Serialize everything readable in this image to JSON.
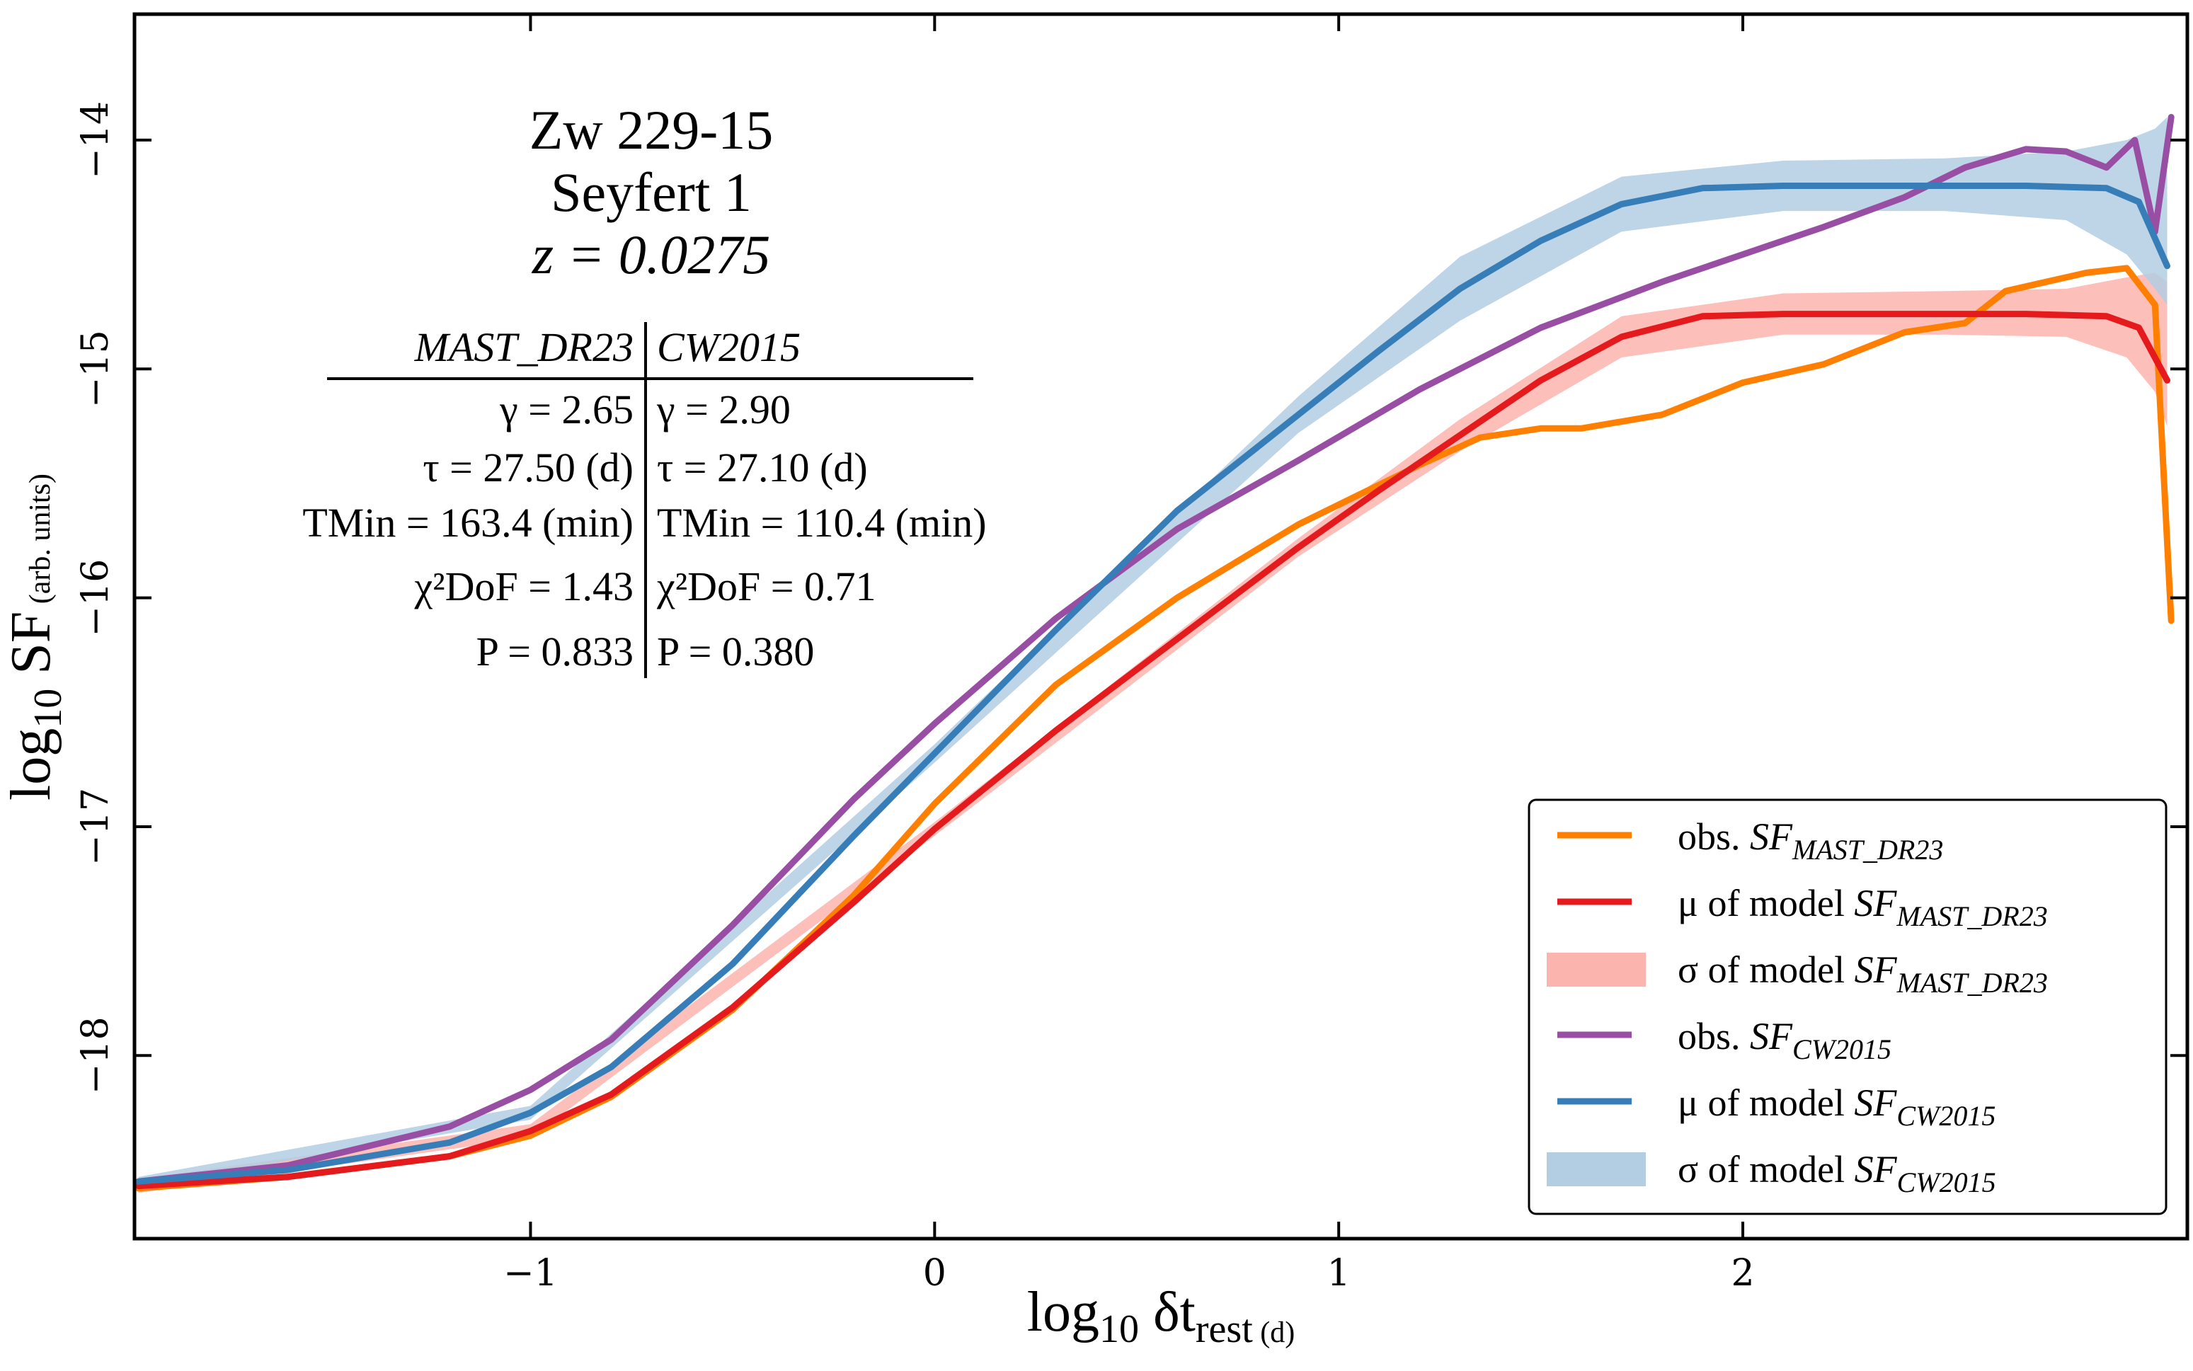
{
  "chart_data": {
    "type": "line",
    "title_lines": [
      "Zw 229-15",
      "Seyfert 1",
      "z = 0.0275"
    ],
    "xlabel": "log10 δtrest (d)",
    "ylabel": "log10 SF (arb. units)",
    "xlim": [
      -1.98,
      3.1
    ],
    "ylim": [
      -18.8,
      -13.45
    ],
    "xticks": [
      -1,
      0,
      1,
      2
    ],
    "xtick_labels": [
      "−1",
      "0",
      "1",
      "2"
    ],
    "yticks": [
      -14,
      -15,
      -16,
      -17,
      -18
    ],
    "ytick_labels": [
      "−14",
      "−15",
      "−16",
      "−17",
      "−18"
    ],
    "grid": false,
    "legend_position": "bottom-right",
    "stats_table": {
      "headers": [
        "MAST_DR23",
        "CW2015"
      ],
      "rows": [
        [
          "γ = 2.65",
          "γ = 2.90"
        ],
        [
          "τ = 27.50 (d)",
          "τ = 27.10 (d)"
        ],
        [
          "TMin = 163.4 (min)",
          "TMin = 110.4 (min)"
        ],
        [
          "χ²DoF = 1.43",
          "χ²DoF = 0.71"
        ],
        [
          "P = 0.833",
          "P = 0.380"
        ]
      ]
    },
    "series": [
      {
        "name": "obs. SFMAST_DR23",
        "kind": "line",
        "color": "#ff7f00",
        "x": [
          -1.97,
          -1.6,
          -1.2,
          -1.0,
          -0.8,
          -0.5,
          -0.2,
          0.0,
          0.3,
          0.6,
          0.9,
          1.2,
          1.35,
          1.5,
          1.6,
          1.8,
          2.0,
          2.2,
          2.4,
          2.55,
          2.65,
          2.75,
          2.85,
          2.95,
          3.02,
          3.06
        ],
        "y": [
          -18.58,
          -18.53,
          -18.44,
          -18.35,
          -18.18,
          -17.8,
          -17.3,
          -16.9,
          -16.38,
          -16.0,
          -15.68,
          -15.42,
          -15.3,
          -15.26,
          -15.26,
          -15.2,
          -15.06,
          -14.98,
          -14.84,
          -14.8,
          -14.66,
          -14.62,
          -14.58,
          -14.56,
          -14.72,
          -16.1
        ]
      },
      {
        "name": "μ of model SFMAST_DR23",
        "kind": "line",
        "color": "#e41a1c",
        "x": [
          -1.97,
          -1.6,
          -1.2,
          -1.0,
          -0.8,
          -0.5,
          -0.2,
          0.0,
          0.3,
          0.6,
          0.9,
          1.1,
          1.3,
          1.5,
          1.7,
          1.9,
          2.1,
          2.4,
          2.7,
          2.9,
          2.98,
          3.05
        ],
        "y": [
          -18.57,
          -18.53,
          -18.44,
          -18.33,
          -18.17,
          -17.79,
          -17.33,
          -17.01,
          -16.58,
          -16.18,
          -15.78,
          -15.53,
          -15.29,
          -15.05,
          -14.86,
          -14.77,
          -14.76,
          -14.76,
          -14.76,
          -14.77,
          -14.82,
          -15.05
        ]
      },
      {
        "name": "σ of model SFMAST_DR23",
        "kind": "band",
        "color": "#fbb4ae",
        "x": [
          -1.97,
          -1.0,
          0.0,
          0.9,
          1.3,
          1.7,
          2.1,
          2.5,
          2.8,
          2.95,
          3.02,
          3.05
        ],
        "y_low": [
          -18.6,
          -18.36,
          -17.04,
          -15.82,
          -15.36,
          -14.95,
          -14.85,
          -14.85,
          -14.86,
          -14.95,
          -15.1,
          -15.25
        ],
        "y_high": [
          -18.54,
          -18.3,
          -16.98,
          -15.74,
          -15.22,
          -14.77,
          -14.67,
          -14.66,
          -14.65,
          -14.6,
          -14.58,
          -14.62
        ]
      },
      {
        "name": "obs. SFCW2015",
        "kind": "line",
        "color": "#984ea3",
        "x": [
          -1.97,
          -1.6,
          -1.2,
          -1.0,
          -0.8,
          -0.5,
          -0.2,
          0.0,
          0.3,
          0.6,
          0.9,
          1.2,
          1.5,
          1.8,
          2.0,
          2.2,
          2.4,
          2.55,
          2.7,
          2.8,
          2.9,
          2.97,
          3.02,
          3.06
        ],
        "y": [
          -18.55,
          -18.48,
          -18.31,
          -18.15,
          -17.93,
          -17.43,
          -16.88,
          -16.55,
          -16.09,
          -15.7,
          -15.4,
          -15.09,
          -14.82,
          -14.62,
          -14.5,
          -14.38,
          -14.25,
          -14.12,
          -14.04,
          -14.05,
          -14.12,
          -14.0,
          -14.4,
          -13.9
        ]
      },
      {
        "name": "μ of model SFCW2015",
        "kind": "line",
        "color": "#377eb8",
        "x": [
          -1.97,
          -1.6,
          -1.2,
          -1.0,
          -0.8,
          -0.5,
          -0.2,
          0.0,
          0.3,
          0.6,
          0.9,
          1.1,
          1.3,
          1.5,
          1.7,
          1.9,
          2.1,
          2.4,
          2.7,
          2.9,
          2.98,
          3.05
        ],
        "y": [
          -18.55,
          -18.5,
          -18.38,
          -18.25,
          -18.05,
          -17.6,
          -17.04,
          -16.68,
          -16.14,
          -15.62,
          -15.2,
          -14.92,
          -14.65,
          -14.44,
          -14.28,
          -14.21,
          -14.2,
          -14.2,
          -14.2,
          -14.21,
          -14.27,
          -14.55
        ]
      },
      {
        "name": "σ of model SFCW2015",
        "kind": "band",
        "color": "#b3cde3",
        "x": [
          -1.97,
          -1.0,
          0.0,
          0.9,
          1.3,
          1.7,
          2.1,
          2.5,
          2.8,
          2.95,
          3.02,
          3.05
        ],
        "y_low": [
          -18.57,
          -18.28,
          -16.72,
          -15.28,
          -14.79,
          -14.4,
          -14.31,
          -14.31,
          -14.35,
          -14.5,
          -14.65,
          -14.72
        ],
        "y_high": [
          -18.53,
          -18.22,
          -16.64,
          -15.12,
          -14.51,
          -14.16,
          -14.09,
          -14.08,
          -14.05,
          -14.0,
          -13.95,
          -13.9
        ]
      }
    ]
  },
  "legend": {
    "entries": [
      {
        "prefix": "obs. ",
        "symbol": "SF",
        "sub": "MAST_DR23",
        "color": "#ff7f00",
        "kind": "line"
      },
      {
        "prefix": "μ of model ",
        "symbol": "SF",
        "sub": "MAST_DR23",
        "color": "#e41a1c",
        "kind": "line"
      },
      {
        "prefix": "σ of model ",
        "symbol": "SF",
        "sub": "MAST_DR23",
        "color": "#fbb4ae",
        "kind": "band"
      },
      {
        "prefix": "obs. ",
        "symbol": "SF",
        "sub": "CW2015",
        "color": "#984ea3",
        "kind": "line"
      },
      {
        "prefix": "μ of model ",
        "symbol": "SF",
        "sub": "CW2015",
        "color": "#377eb8",
        "kind": "line"
      },
      {
        "prefix": "σ of model ",
        "symbol": "SF",
        "sub": "CW2015",
        "color": "#b3cde3",
        "kind": "band"
      }
    ]
  },
  "labels": {
    "x_main": "log",
    "x_sub": "10",
    "x_rest": " δt",
    "x_rest_sub": "rest",
    "x_unit": " (d)",
    "y_main": "log",
    "y_sub": "10",
    "y_rest": " SF",
    "y_unit": " (arb. units)"
  }
}
